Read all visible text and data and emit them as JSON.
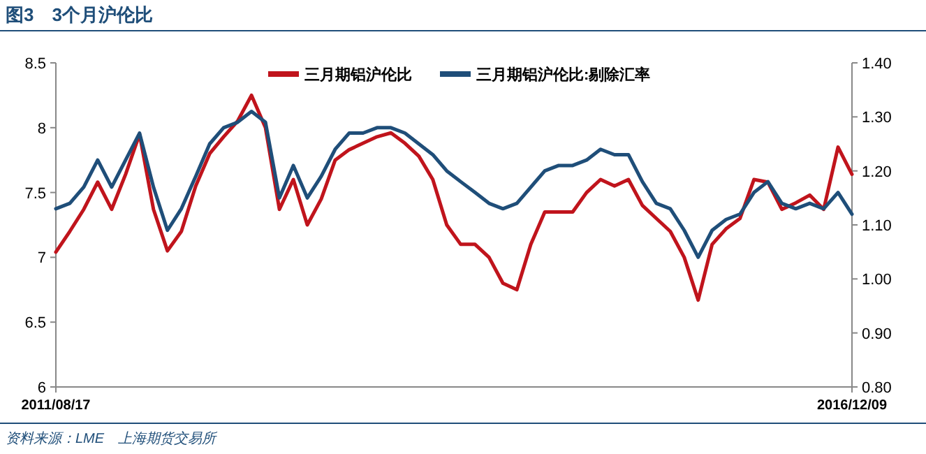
{
  "chart_data": {
    "type": "line",
    "title": "图3　3个月沪伦比",
    "annotations": [
      "资料来源：LME　上海期货交易所"
    ],
    "x": [
      "2011-08-17",
      "2011-09-20",
      "2011-10-24",
      "2011-11-27",
      "2011-12-31",
      "2012-02-03",
      "2012-03-08",
      "2012-04-11",
      "2012-05-15",
      "2012-06-18",
      "2012-07-23",
      "2012-08-26",
      "2012-09-29",
      "2012-11-02",
      "2012-12-06",
      "2013-01-09",
      "2013-02-12",
      "2013-03-18",
      "2013-04-21",
      "2013-05-25",
      "2013-06-28",
      "2013-08-01",
      "2013-09-04",
      "2013-10-08",
      "2013-11-11",
      "2013-12-15",
      "2014-01-18",
      "2014-02-21",
      "2014-03-27",
      "2014-04-30",
      "2014-06-04",
      "2014-07-08",
      "2014-08-11",
      "2014-09-14",
      "2014-10-18",
      "2014-11-21",
      "2014-12-25",
      "2015-01-28",
      "2015-03-03",
      "2015-04-06",
      "2015-05-10",
      "2015-06-13",
      "2015-07-17",
      "2015-08-20",
      "2015-09-23",
      "2015-10-27",
      "2015-11-30",
      "2016-01-03",
      "2016-02-06",
      "2016-03-11",
      "2016-04-14",
      "2016-05-18",
      "2016-06-21",
      "2016-07-25",
      "2016-08-28",
      "2016-10-01",
      "2016-11-05",
      "2016-12-09"
    ],
    "series": [
      {
        "name": "三月期铝沪伦比",
        "color": "#c0141c",
        "values": [
          7.04,
          7.2,
          7.37,
          7.58,
          7.37,
          7.64,
          7.95,
          7.37,
          7.05,
          7.2,
          7.55,
          7.8,
          7.93,
          8.05,
          8.25,
          8.0,
          7.37,
          7.6,
          7.25,
          7.45,
          7.75,
          7.83,
          7.88,
          7.93,
          7.96,
          7.88,
          7.78,
          7.6,
          7.25,
          7.1,
          7.1,
          7.0,
          6.8,
          6.75,
          7.1,
          7.35,
          7.35,
          7.35,
          7.5,
          7.6,
          7.55,
          7.6,
          7.4,
          7.3,
          7.2,
          7.0,
          6.67,
          7.1,
          7.22,
          7.3,
          7.6,
          7.58,
          7.37,
          7.42,
          7.48,
          7.37,
          7.85,
          7.64
        ]
      },
      {
        "name": "三月期铝沪伦比:剔除汇率",
        "color": "#1f4e79",
        "axis": "y2",
        "values": [
          1.13,
          1.14,
          1.17,
          1.22,
          1.17,
          1.22,
          1.27,
          1.17,
          1.09,
          1.13,
          1.19,
          1.25,
          1.28,
          1.29,
          1.31,
          1.29,
          1.15,
          1.21,
          1.15,
          1.19,
          1.24,
          1.27,
          1.27,
          1.28,
          1.28,
          1.27,
          1.25,
          1.23,
          1.2,
          1.18,
          1.16,
          1.14,
          1.13,
          1.14,
          1.17,
          1.2,
          1.21,
          1.21,
          1.22,
          1.24,
          1.23,
          1.23,
          1.18,
          1.14,
          1.13,
          1.09,
          1.04,
          1.09,
          1.11,
          1.12,
          1.16,
          1.18,
          1.14,
          1.13,
          1.14,
          1.13,
          1.16,
          1.12
        ]
      }
    ],
    "xlim": [
      "2011-08-17",
      "2016-12-09"
    ],
    "xticks": [
      {
        "value": "2011-08-17",
        "label": "2011/08/17"
      },
      {
        "value": "2016-12-09",
        "label": "2016/12/09"
      }
    ],
    "ylim": [
      6,
      8.5
    ],
    "yticks": [
      6,
      6.5,
      7,
      7.5,
      8,
      8.5
    ],
    "y2lim": [
      0.8,
      1.4
    ],
    "y2ticks": [
      {
        "value": 0.8,
        "label": "0.80"
      },
      {
        "value": 0.9,
        "label": "0.90"
      },
      {
        "value": 1.0,
        "label": "1.00"
      },
      {
        "value": 1.1,
        "label": "1.10"
      },
      {
        "value": 1.2,
        "label": "1.20"
      },
      {
        "value": 1.3,
        "label": "1.30"
      },
      {
        "value": 1.4,
        "label": "1.40"
      }
    ],
    "legend": "top",
    "grid": false,
    "line_style": "solid",
    "marker": "none"
  }
}
